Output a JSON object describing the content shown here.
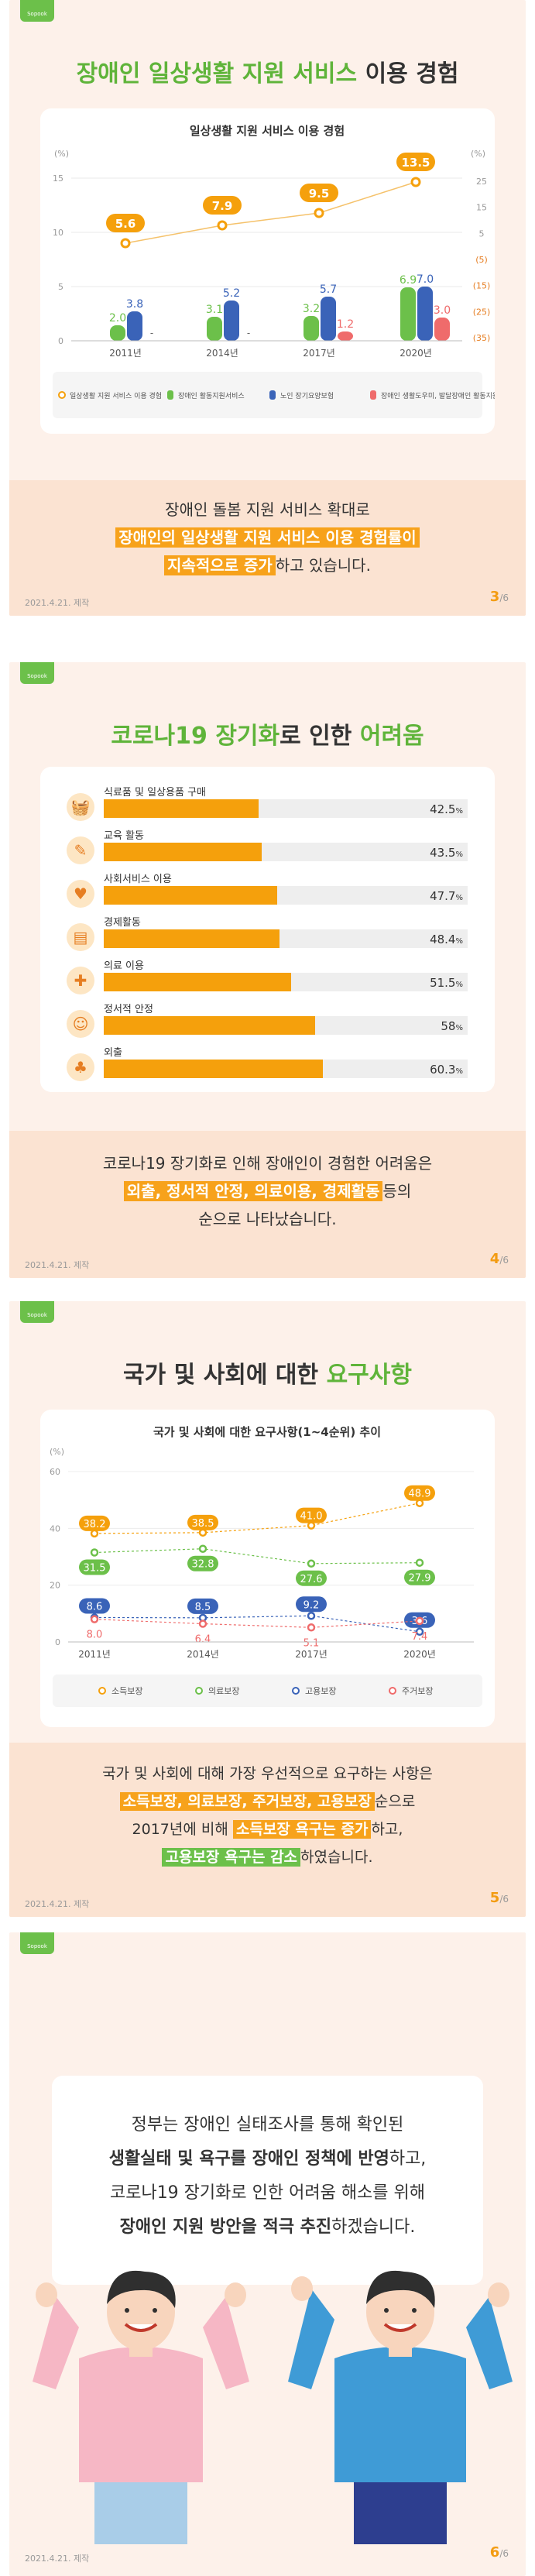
{
  "slide3": {
    "tab": "Sopook",
    "title_part1": "장애인 일상생활 지원 서비스",
    "title_part2": " 이용 경험",
    "chart_title": "일상생활 지원 서비스 이용 경험",
    "left_unit": "(%)",
    "right_unit": "(%)",
    "caption_line1": "장애인 돌봄 지원 서비스 확대로",
    "caption_hl1": "장애인의 일상생활 지원 서비스 이용 경험률이",
    "caption_hl2": "지속적으로 증가",
    "caption_tail": "하고 있습니다.",
    "date": "2021.4.21. 제작",
    "page": "3",
    "page_total": "/6"
  },
  "slide4": {
    "tab": "Sopook",
    "title_part1": "코로나19 장기화",
    "title_part2": "로 인한 ",
    "title_part3": "어려움",
    "caption_line1": "코로나19 장기화로 인해 장애인이 경험한 어려움은",
    "caption_hl": "외출, 정서적 안정, 의료이용, 경제활동",
    "caption_tail1": "등의",
    "caption_line3": "순으로 나타났습니다.",
    "date": "2021.4.21. 제작",
    "page": "4",
    "page_total": "/6"
  },
  "slide5": {
    "tab": "Sopook",
    "title_part1": "국가 및 사회에 대한 ",
    "title_part2": "요구사항",
    "chart_title": "국가 및 사회에 대한 요구사항(1~4순위) 추이",
    "unit": "(%)",
    "caption_line1": "국가 및 사회에 대해 가장 우선적으로 요구하는 사항은",
    "caption_hl1": "소득보장, 의료보장, 주거보장, 고용보장",
    "caption_tail1": "순으로",
    "caption_pre2": "2017년에 비해 ",
    "caption_hl2": "소득보장 욕구는 증가",
    "caption_tail2": "하고,",
    "caption_hl3": "고용보장 욕구는 감소",
    "caption_tail3": "하였습니다.",
    "date": "2021.4.21. 제작",
    "page": "5",
    "page_total": "/6"
  },
  "slide6": {
    "tab": "Sopook",
    "line1": "정부는 장애인 실태조사를 통해 확인된",
    "line2_bold": "생활실태 및 욕구를 장애인 정책에 반영",
    "line2_tail": "하고,",
    "line3": "코로나19 장기화로 인한 어려움 해소를 위해",
    "line4_bold": "장애인 지원 방안을 적극 추진",
    "line4_tail": "하겠습니다.",
    "date": "2021.4.21. 제작",
    "page": "6",
    "page_total": "/6"
  },
  "colors": {
    "orange": "#f5a00c",
    "green": "#6cc04a",
    "blue": "#3a63b8",
    "red": "#ef6b6b",
    "background": "#fdf1ea"
  },
  "chart_data": [
    {
      "type": "bar",
      "title": "일상생활 지원 서비스 이용 경험",
      "categories": [
        "2011년",
        "2014년",
        "2017년",
        "2020년"
      ],
      "left_axis": {
        "ticks": [
          "0",
          "5",
          "10",
          "15"
        ],
        "range": [
          0,
          15
        ]
      },
      "right_axis": {
        "ticks": [
          "(35)",
          "(25)",
          "(15)",
          "(5)",
          "5",
          "15",
          "25"
        ]
      },
      "line_series": {
        "name": "일상생활 지원서비스 이용 경험",
        "values": [
          5.6,
          7.9,
          9.5,
          13.5
        ],
        "labels": [
          "5.6",
          "7.9",
          "9.5",
          "13.5"
        ]
      },
      "series": [
        {
          "name": "장애인 활동지원서비스",
          "values": [
            2.0,
            3.1,
            3.2,
            6.9
          ],
          "labels": [
            "2.0",
            "3.1",
            "3.2",
            "6.9"
          ]
        },
        {
          "name": "노인 장기요양보험",
          "values": [
            3.8,
            5.2,
            5.7,
            7.0
          ],
          "labels": [
            "3.8",
            "5.2",
            "5.7",
            "7.0"
          ]
        },
        {
          "name": "장애인 생활도우미, 발달장애인 활동지원서비스 등",
          "values": [
            null,
            null,
            1.2,
            3.0
          ],
          "labels": [
            "-",
            "-",
            "1.2",
            "3.0"
          ]
        }
      ],
      "legend": [
        "일상생활 지원 서비스 이용 경험",
        "장애인 활동지원서비스",
        "노인 장기요양보험",
        "장애인 생활도우미, 발달장애인 활동지원서비스 등"
      ]
    },
    {
      "type": "bar",
      "orientation": "horizontal",
      "categories": [
        "식료품 및 일상용품 구매",
        "교육 활동",
        "사회서비스 이용",
        "경제활동",
        "의료 이용",
        "정서적 안정",
        "외출"
      ],
      "values": [
        42.5,
        43.5,
        47.7,
        48.4,
        51.5,
        58,
        60.3
      ],
      "value_labels": [
        "42.5",
        "43.5",
        "47.7",
        "48.4",
        "51.5",
        "58",
        "60.3"
      ],
      "unit": "%",
      "icons": [
        "basket-icon",
        "pencil-icon",
        "heart-hand-icon",
        "cash-register-icon",
        "medical-chart-icon",
        "people-icon",
        "tree-icon"
      ],
      "range": [
        0,
        100
      ]
    },
    {
      "type": "line",
      "title": "국가 및 사회에 대한 요구사항(1~4순위) 추이",
      "categories": [
        "2011년",
        "2014년",
        "2017년",
        "2020년"
      ],
      "y_ticks": [
        "0",
        "20",
        "40",
        "60"
      ],
      "ylim": [
        0,
        60
      ],
      "series": [
        {
          "name": "소득보장",
          "values": [
            38.2,
            38.5,
            41.0,
            48.9
          ],
          "labels": [
            "38.2",
            "38.5",
            "41.0",
            "48.9"
          ]
        },
        {
          "name": "의료보장",
          "values": [
            31.5,
            32.8,
            27.6,
            27.9
          ],
          "labels": [
            "31.5",
            "32.8",
            "27.6",
            "27.9"
          ]
        },
        {
          "name": "고용보장",
          "values": [
            8.6,
            8.5,
            9.2,
            3.6
          ],
          "labels": [
            "8.6",
            "8.5",
            "9.2",
            "3.6"
          ]
        },
        {
          "name": "주거보장",
          "values": [
            8.0,
            6.4,
            5.1,
            7.4
          ],
          "labels": [
            "8.0",
            "6.4",
            "5.1",
            "7.4"
          ]
        }
      ],
      "legend": [
        "소득보장",
        "의료보장",
        "고용보장",
        "주거보장"
      ]
    }
  ]
}
